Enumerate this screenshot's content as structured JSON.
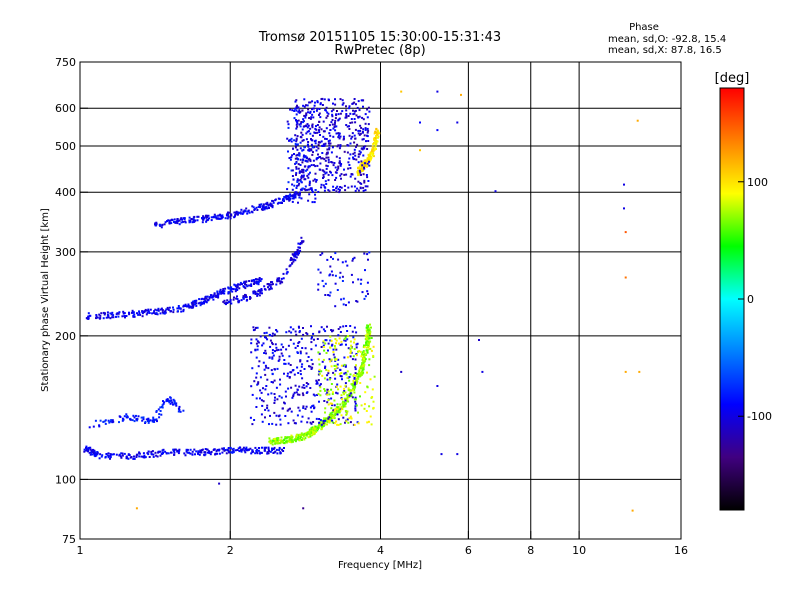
{
  "chart_data": {
    "type": "scatter",
    "title": "Tromsø 20151105 15:30:00-15:31:43",
    "subtitle": "RwPretec (8p)",
    "xlabel": "Frequency [MHz]",
    "ylabel": "Stationary phase Virtual Height [km]",
    "x_scale": "log",
    "y_scale": "log",
    "xlim": [
      1,
      16
    ],
    "ylim": [
      75,
      750
    ],
    "x_ticks": [
      1,
      2,
      4,
      6,
      8,
      10,
      16
    ],
    "x_tick_labels": [
      "1",
      "2",
      "4",
      "6",
      "8",
      "10",
      "16"
    ],
    "x_gridlines": [
      2,
      4,
      6,
      8,
      10
    ],
    "y_ticks": [
      75,
      100,
      200,
      300,
      400,
      500,
      600,
      750
    ],
    "y_tick_labels": [
      "75",
      "100",
      "200",
      "300",
      "400",
      "500",
      "600",
      "750"
    ],
    "y_gridlines": [
      100,
      200,
      300,
      400,
      500,
      600
    ],
    "grid": true,
    "stats": {
      "heading": "Phase",
      "line_o": "mean, sd,O: -92.8, 15.4",
      "line_x": "mean, sd,X:  87.8, 16.5"
    },
    "colorbar": {
      "label": "[deg]",
      "range": [
        -180,
        180
      ],
      "ticks": [
        100,
        0,
        -100
      ],
      "tick_labels": [
        "100",
        "0",
        "-100"
      ],
      "colors": [
        "#ff0000",
        "#ff8000",
        "#ffff00",
        "#00ff00",
        "#00ffff",
        "#0080ff",
        "#0000ff",
        "#400080",
        "#000000"
      ]
    },
    "traces": [
      {
        "phase": -95,
        "density": 3,
        "points": [
          [
            1.02,
            116
          ],
          [
            1.1,
            112
          ],
          [
            1.3,
            112
          ],
          [
            1.5,
            114
          ],
          [
            1.75,
            114
          ],
          [
            2.0,
            115
          ],
          [
            2.25,
            115
          ],
          [
            2.55,
            115
          ]
        ]
      },
      {
        "phase": -95,
        "density": 3,
        "points": [
          [
            1.02,
            220
          ],
          [
            1.2,
            221
          ],
          [
            1.4,
            224
          ],
          [
            1.6,
            228
          ],
          [
            1.75,
            236
          ],
          [
            1.9,
            246
          ],
          [
            2.1,
            254
          ],
          [
            2.3,
            262
          ]
        ]
      },
      {
        "phase": -95,
        "density": 3,
        "points": [
          [
            1.4,
            340
          ],
          [
            1.6,
            348
          ],
          [
            1.8,
            352
          ],
          [
            2.0,
            358
          ],
          [
            2.3,
            372
          ],
          [
            2.55,
            385
          ],
          [
            2.75,
            398
          ]
        ]
      },
      {
        "phase": -85,
        "density": 2,
        "points": [
          [
            1.05,
            130
          ],
          [
            1.25,
            135
          ],
          [
            1.4,
            132
          ],
          [
            1.5,
            148
          ],
          [
            1.6,
            140
          ]
        ]
      },
      {
        "phase": -100,
        "density": 2,
        "points": [
          [
            1.95,
            236
          ],
          [
            2.15,
            240
          ],
          [
            2.35,
            250
          ],
          [
            2.55,
            265
          ],
          [
            2.7,
            295
          ],
          [
            2.8,
            318
          ]
        ]
      },
      {
        "phase": 70,
        "density": 4,
        "points": [
          [
            2.4,
            120
          ],
          [
            2.6,
            121
          ],
          [
            2.8,
            123
          ],
          [
            2.95,
            127
          ],
          [
            3.1,
            132
          ],
          [
            3.3,
            140
          ],
          [
            3.5,
            152
          ],
          [
            3.65,
            168
          ],
          [
            3.75,
            190
          ],
          [
            3.8,
            210
          ]
        ]
      },
      {
        "phase": 100,
        "density": 3,
        "points": [
          [
            3.6,
            440
          ],
          [
            3.7,
            455
          ],
          [
            3.8,
            470
          ],
          [
            3.9,
            500
          ],
          [
            3.95,
            540
          ]
        ]
      }
    ],
    "clouds": [
      {
        "phase": -100,
        "x_range": [
          2.2,
          3.6
        ],
        "y_range": [
          130,
          210
        ],
        "count": 420
      },
      {
        "phase": -105,
        "x_range": [
          2.7,
          3.8
        ],
        "y_range": [
          400,
          630
        ],
        "count": 520
      },
      {
        "phase": -90,
        "x_range": [
          2.6,
          3.0
        ],
        "y_range": [
          380,
          600
        ],
        "count": 120
      },
      {
        "phase": 80,
        "x_range": [
          3.0,
          3.9
        ],
        "y_range": [
          130,
          200
        ],
        "count": 180
      },
      {
        "phase": -95,
        "x_range": [
          3.0,
          3.8
        ],
        "y_range": [
          230,
          300
        ],
        "count": 60
      }
    ],
    "isolated_points": [
      {
        "x": 1.0,
        "y": 100,
        "phase": -90
      },
      {
        "x": 1.3,
        "y": 87,
        "phase": 120
      },
      {
        "x": 1.9,
        "y": 98,
        "phase": -110
      },
      {
        "x": 2.8,
        "y": 87,
        "phase": -130
      },
      {
        "x": 4.4,
        "y": 168,
        "phase": -110
      },
      {
        "x": 5.2,
        "y": 157,
        "phase": -100
      },
      {
        "x": 5.3,
        "y": 113,
        "phase": -100
      },
      {
        "x": 5.7,
        "y": 113,
        "phase": -100
      },
      {
        "x": 6.3,
        "y": 196,
        "phase": -110
      },
      {
        "x": 6.4,
        "y": 168,
        "phase": -100
      },
      {
        "x": 6.8,
        "y": 402,
        "phase": -100
      },
      {
        "x": 5.2,
        "y": 540,
        "phase": -90
      },
      {
        "x": 5.7,
        "y": 560,
        "phase": -100
      },
      {
        "x": 5.2,
        "y": 650,
        "phase": -100
      },
      {
        "x": 4.8,
        "y": 490,
        "phase": 110
      },
      {
        "x": 4.4,
        "y": 650,
        "phase": 110
      },
      {
        "x": 5.8,
        "y": 640,
        "phase": 120
      },
      {
        "x": 12.3,
        "y": 415,
        "phase": -100
      },
      {
        "x": 12.3,
        "y": 370,
        "phase": -100
      },
      {
        "x": 12.4,
        "y": 330,
        "phase": 150
      },
      {
        "x": 12.4,
        "y": 265,
        "phase": 140
      },
      {
        "x": 12.4,
        "y": 168,
        "phase": 120
      },
      {
        "x": 13.2,
        "y": 168,
        "phase": 120
      },
      {
        "x": 13.1,
        "y": 565,
        "phase": 120
      },
      {
        "x": 12.8,
        "y": 86,
        "phase": 120
      },
      {
        "x": 4.8,
        "y": 560,
        "phase": -90
      }
    ]
  }
}
